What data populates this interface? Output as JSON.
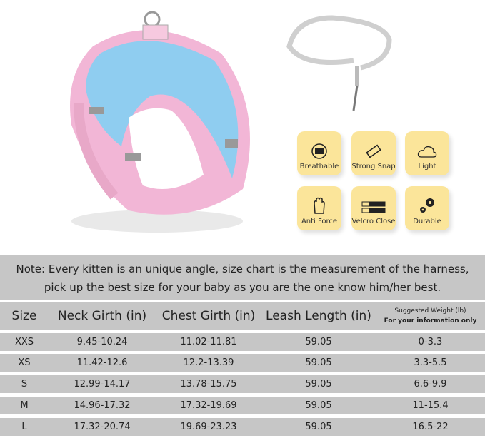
{
  "features": [
    {
      "label": "Breathable",
      "icon": "breathable-icon"
    },
    {
      "label": "Strong Snap",
      "icon": "buckle-icon"
    },
    {
      "label": "Light",
      "icon": "cloud-icon"
    },
    {
      "label": "Anti Force",
      "icon": "hand-icon"
    },
    {
      "label": "Velcro Close",
      "icon": "velcro-icon"
    },
    {
      "label": "Durable",
      "icon": "gears-icon"
    }
  ],
  "note": {
    "line1": "Note: Every kitten is an unique angle, size chart is the measurement of the harness,",
    "line2": "pick up the best size for your baby as you are the one know him/her best."
  },
  "table": {
    "headers": [
      "Size",
      "Neck Girth (in)",
      "Chest Girth (in)",
      "Leash Length (in)"
    ],
    "weight_header": "Suggested Weight (lb)",
    "weight_sub": "For your information only",
    "rows": [
      [
        "XXS",
        "9.45-10.24",
        "11.02-11.81",
        "59.05",
        "0-3.3"
      ],
      [
        "XS",
        "11.42-12.6",
        "12.2-13.39",
        "59.05",
        "3.3-5.5"
      ],
      [
        "S",
        "12.99-14.17",
        "13.78-15.75",
        "59.05",
        "6.6-9.9"
      ],
      [
        "M",
        "14.96-17.32",
        "17.32-19.69",
        "59.05",
        "11-15.4"
      ],
      [
        "L",
        "17.32-20.74",
        "19.69-23.23",
        "59.05",
        "16.5-22"
      ]
    ]
  },
  "colors": {
    "feature_bg": "#fbe59a",
    "table_bg": "#c6c6c6",
    "harness_pink": "#f2b6d6",
    "mesh_blue": "#8fcdf0"
  }
}
